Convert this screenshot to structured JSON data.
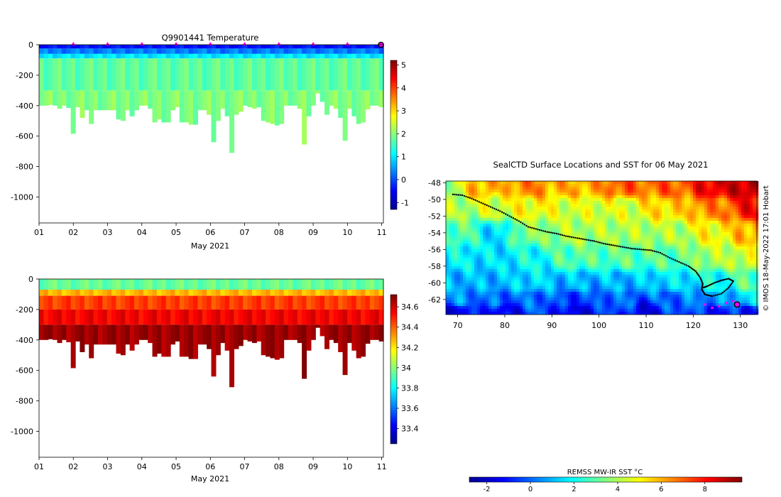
{
  "colors": {
    "jet": [
      "#00008f",
      "#0000ff",
      "#0080ff",
      "#00ffff",
      "#80ff80",
      "#ffff00",
      "#ff8000",
      "#ff0000",
      "#800000"
    ],
    "track": "#000000",
    "marker": "#ff00ff"
  },
  "chart_data": [
    {
      "id": "temperature",
      "type": "heatmap",
      "title": "Q9901441  Temperature",
      "xlabel": "May 2021",
      "ylabel": "",
      "x_ticks": [
        "01",
        "02",
        "03",
        "04",
        "05",
        "06",
        "07",
        "08",
        "09",
        "10",
        "11"
      ],
      "xlim": [
        1,
        11.05
      ],
      "y_ticks": [
        "0",
        "-200",
        "-400",
        "-600",
        "-800",
        "-1000"
      ],
      "ylim": [
        -1170,
        0
      ],
      "colorbar": {
        "ticks": [
          "-1",
          "0",
          "1",
          "2",
          "3",
          "4",
          "5"
        ],
        "range": [
          -1.3,
          5.2
        ]
      },
      "surface_markers_day": [
        2,
        3,
        4,
        5,
        6,
        7,
        8,
        9,
        10
      ],
      "current_profile_day": 11,
      "profile_max_depths": [
        -400,
        -400,
        -395,
        -400,
        -420,
        -400,
        -415,
        -585,
        -410,
        -480,
        -430,
        -520,
        -430,
        -430,
        -430,
        -430,
        -430,
        -490,
        -500,
        -430,
        -470,
        -430,
        -400,
        -400,
        -420,
        -510,
        -490,
        -510,
        -510,
        -430,
        -410,
        -510,
        -510,
        -525,
        -525,
        -430,
        -430,
        -460,
        -640,
        -500,
        -420,
        -470,
        -710,
        -460,
        -440,
        -400,
        -410,
        -420,
        -410,
        -500,
        -510,
        -520,
        -530,
        -520,
        -400,
        -400,
        -400,
        -420,
        -655,
        -470,
        -400,
        -320,
        -375,
        -460,
        -400,
        -420,
        -480,
        -630,
        -420,
        -470,
        -520,
        -510,
        -425,
        -400,
        -400,
        -410
      ],
      "profile_layers_degC": [
        {
          "from_depth": 0,
          "to_depth": -25,
          "value": -0.4
        },
        {
          "from_depth": -25,
          "to_depth": -60,
          "value": 0.3
        },
        {
          "from_depth": -60,
          "to_depth": -90,
          "value": 1.0
        },
        {
          "from_depth": -90,
          "to_depth": -300,
          "value": 1.75
        },
        {
          "from_depth": -300,
          "to_depth": -1200,
          "value": 1.95
        }
      ]
    },
    {
      "id": "salinity",
      "type": "heatmap",
      "title": "",
      "xlabel": "May 2021",
      "ylabel": "",
      "x_ticks": [
        "01",
        "02",
        "03",
        "04",
        "05",
        "06",
        "07",
        "08",
        "09",
        "10",
        "11"
      ],
      "xlim": [
        1,
        11.05
      ],
      "y_ticks": [
        "0",
        "-200",
        "-400",
        "-600",
        "-800",
        "-1000"
      ],
      "ylim": [
        -1170,
        0
      ],
      "colorbar": {
        "ticks": [
          "33.4",
          "33.6",
          "33.8",
          "34",
          "34.2",
          "34.4",
          "34.6"
        ],
        "range": [
          33.25,
          34.72
        ]
      },
      "profile_layers_psu": [
        {
          "from_depth": 0,
          "to_depth": -70,
          "value": 33.95
        },
        {
          "from_depth": -70,
          "to_depth": -110,
          "value": 34.27
        },
        {
          "from_depth": -110,
          "to_depth": -200,
          "value": 34.45
        },
        {
          "from_depth": -200,
          "to_depth": -300,
          "value": 34.55
        },
        {
          "from_depth": -300,
          "to_depth": -1200,
          "value": 34.68
        }
      ]
    },
    {
      "id": "map",
      "type": "heatmap",
      "title": "SealCTD Surface Locations and SST for 06 May 2021",
      "xlabel": "",
      "ylabel": "",
      "x_ticks": [
        "70",
        "80",
        "90",
        "100",
        "110",
        "120",
        "130"
      ],
      "xlim": [
        67.5,
        133.5
      ],
      "y_ticks": [
        "-48",
        "-50",
        "-52",
        "-54",
        "-56",
        "-58",
        "-60",
        "-62"
      ],
      "ylim": [
        -63.8,
        -47.8
      ],
      "colorbar": {
        "label": "REMSS MW-IR SST °C",
        "ticks": [
          "-2",
          "0",
          "2",
          "4",
          "6",
          "8"
        ],
        "range": [
          -2.8,
          9.7
        ]
      },
      "track_lon_lat": [
        [
          69,
          -49.4
        ],
        [
          71,
          -49.5
        ],
        [
          73,
          -49.9
        ],
        [
          75,
          -50.4
        ],
        [
          77,
          -50.9
        ],
        [
          79,
          -51.4
        ],
        [
          81,
          -52
        ],
        [
          83,
          -52.6
        ],
        [
          85,
          -53.3
        ],
        [
          87,
          -53.6
        ],
        [
          89,
          -53.9
        ],
        [
          91,
          -54.1
        ],
        [
          93,
          -54.4
        ],
        [
          95,
          -54.6
        ],
        [
          97,
          -54.8
        ],
        [
          99,
          -55
        ],
        [
          101,
          -55.3
        ],
        [
          103,
          -55.5
        ],
        [
          105,
          -55.7
        ],
        [
          107,
          -55.9
        ],
        [
          109,
          -56
        ],
        [
          111,
          -56.1
        ],
        [
          113,
          -56.4
        ],
        [
          115,
          -57
        ],
        [
          117,
          -57.5
        ],
        [
          119,
          -58
        ],
        [
          120.5,
          -58.6
        ],
        [
          121.5,
          -59.4
        ],
        [
          122,
          -60.1
        ],
        [
          121.8,
          -60.8
        ],
        [
          122.5,
          -61.4
        ],
        [
          124,
          -61.6
        ],
        [
          126,
          -61.3
        ],
        [
          127.5,
          -60.6
        ],
        [
          128.5,
          -59.8
        ],
        [
          127.5,
          -59.5
        ],
        [
          126,
          -59.7
        ],
        [
          124.5,
          -60
        ],
        [
          123,
          -60.4
        ],
        [
          122,
          -60.6
        ]
      ],
      "recent_track_lon_lat": [
        [
          122.5,
          -62.6
        ],
        [
          124,
          -63
        ],
        [
          125.5,
          -62.8
        ],
        [
          127,
          -62.4
        ],
        [
          128.5,
          -62.2
        ]
      ],
      "latest_position_lon_lat": [
        129.3,
        -62.6
      ],
      "sst_anchor_points": [
        [
          68,
          -48.5,
          4.0
        ],
        [
          75,
          -48.5,
          6.0
        ],
        [
          85,
          -48.5,
          6.5
        ],
        [
          95,
          -48.5,
          6.0
        ],
        [
          105,
          -48.5,
          7.0
        ],
        [
          115,
          -48.5,
          7.0
        ],
        [
          125,
          -48.5,
          8.5
        ],
        [
          132,
          -48.5,
          9.0
        ],
        [
          70,
          -51,
          4.0
        ],
        [
          78,
          -51,
          4.5
        ],
        [
          85,
          -51,
          5.0
        ],
        [
          95,
          -51,
          4.5
        ],
        [
          105,
          -51,
          4.5
        ],
        [
          115,
          -51,
          5.5
        ],
        [
          125,
          -51,
          6.5
        ],
        [
          132,
          -51,
          8.0
        ],
        [
          70,
          -54,
          3.0
        ],
        [
          78,
          -54,
          1.5
        ],
        [
          85,
          -54,
          3.5
        ],
        [
          95,
          -54,
          4.0
        ],
        [
          105,
          -54,
          4.0
        ],
        [
          115,
          -54,
          4.0
        ],
        [
          125,
          -54,
          5.0
        ],
        [
          132,
          -54,
          6.0
        ],
        [
          70,
          -57,
          1.8
        ],
        [
          78,
          -57,
          1.5
        ],
        [
          85,
          -57,
          2.0
        ],
        [
          95,
          -57,
          3.0
        ],
        [
          105,
          -57,
          3.0
        ],
        [
          115,
          -57,
          3.0
        ],
        [
          125,
          -57,
          4.0
        ],
        [
          132,
          -57,
          4.5
        ],
        [
          70,
          -60,
          1.0
        ],
        [
          78,
          -60,
          1.0
        ],
        [
          85,
          -60,
          1.5
        ],
        [
          95,
          -60,
          1.0
        ],
        [
          105,
          -60,
          1.0
        ],
        [
          115,
          -60,
          1.5
        ],
        [
          125,
          -60,
          2.0
        ],
        [
          132,
          -60,
          3.0
        ],
        [
          70,
          -62,
          0.5
        ],
        [
          78,
          -62,
          0.0
        ],
        [
          85,
          -62,
          0.0
        ],
        [
          95,
          -62,
          -0.5
        ],
        [
          105,
          -62,
          0.0
        ],
        [
          115,
          -62,
          0.0
        ],
        [
          125,
          -62,
          0.5
        ],
        [
          132,
          -62,
          1.5
        ],
        [
          70,
          -63.5,
          -1.5
        ],
        [
          80,
          -63.5,
          -1.5
        ],
        [
          95,
          -63.5,
          -1.5
        ],
        [
          110,
          -63.5,
          -1.5
        ],
        [
          125,
          -63.5,
          -1.0
        ],
        [
          132,
          -63.5,
          -1.0
        ]
      ]
    }
  ],
  "credit": "© IMOS 18-May-2022 17:01 Hobart"
}
